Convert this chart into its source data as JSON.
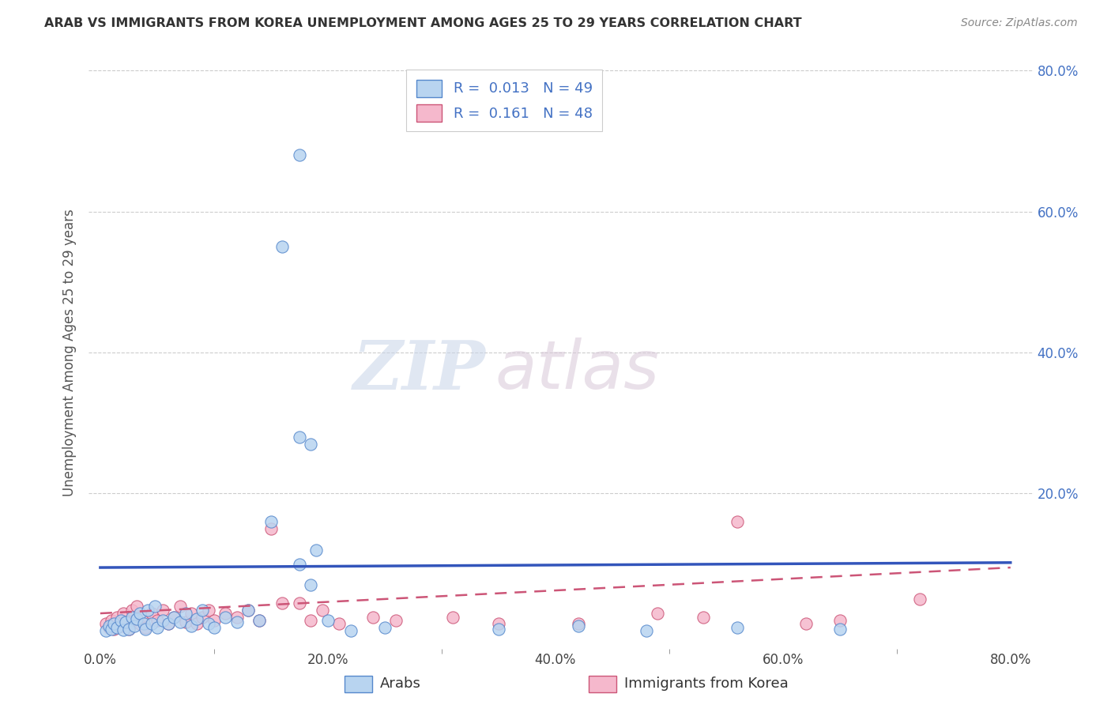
{
  "title": "ARAB VS IMMIGRANTS FROM KOREA UNEMPLOYMENT AMONG AGES 25 TO 29 YEARS CORRELATION CHART",
  "source": "Source: ZipAtlas.com",
  "ylabel": "Unemployment Among Ages 25 to 29 years",
  "xlim": [
    -0.01,
    0.82
  ],
  "ylim": [
    -0.02,
    0.82
  ],
  "xticks": [
    0.0,
    0.2,
    0.4,
    0.6,
    0.8
  ],
  "yticks": [
    0.2,
    0.4,
    0.6,
    0.8
  ],
  "xticklabels": [
    "0.0%",
    "20.0%",
    "40.0%",
    "60.0%",
    "80.0%"
  ],
  "yticklabels": [
    "20.0%",
    "40.0%",
    "60.0%",
    "80.0%"
  ],
  "arab_color": "#b8d4f0",
  "arab_edge_color": "#5588cc",
  "korea_color": "#f5b8cc",
  "korea_edge_color": "#cc5577",
  "trend_arab_color": "#3355bb",
  "trend_korea_color": "#cc5577",
  "R_arab": 0.013,
  "N_arab": 49,
  "R_korea": 0.161,
  "N_korea": 48,
  "watermark_zip": "ZIP",
  "watermark_atlas": "atlas",
  "arab_x": [
    0.005,
    0.008,
    0.01,
    0.012,
    0.015,
    0.018,
    0.02,
    0.022,
    0.025,
    0.028,
    0.03,
    0.032,
    0.035,
    0.038,
    0.04,
    0.042,
    0.045,
    0.048,
    0.05,
    0.055,
    0.06,
    0.065,
    0.07,
    0.075,
    0.08,
    0.085,
    0.09,
    0.095,
    0.1,
    0.11,
    0.12,
    0.13,
    0.14,
    0.15,
    0.16,
    0.175,
    0.185,
    0.2,
    0.22,
    0.25,
    0.35,
    0.42,
    0.48,
    0.56,
    0.65,
    0.175,
    0.19,
    0.175,
    0.185
  ],
  "arab_y": [
    0.005,
    0.012,
    0.008,
    0.015,
    0.01,
    0.02,
    0.006,
    0.018,
    0.008,
    0.025,
    0.012,
    0.022,
    0.03,
    0.015,
    0.008,
    0.035,
    0.015,
    0.04,
    0.01,
    0.02,
    0.015,
    0.025,
    0.018,
    0.03,
    0.012,
    0.022,
    0.035,
    0.015,
    0.01,
    0.025,
    0.018,
    0.035,
    0.02,
    0.16,
    0.55,
    0.28,
    0.27,
    0.02,
    0.005,
    0.01,
    0.008,
    0.012,
    0.005,
    0.01,
    0.008,
    0.1,
    0.12,
    0.68,
    0.07
  ],
  "korea_x": [
    0.005,
    0.008,
    0.01,
    0.012,
    0.015,
    0.018,
    0.02,
    0.022,
    0.025,
    0.028,
    0.03,
    0.032,
    0.035,
    0.038,
    0.04,
    0.045,
    0.05,
    0.055,
    0.06,
    0.065,
    0.07,
    0.075,
    0.08,
    0.085,
    0.09,
    0.095,
    0.1,
    0.11,
    0.12,
    0.13,
    0.14,
    0.15,
    0.16,
    0.175,
    0.185,
    0.195,
    0.21,
    0.24,
    0.26,
    0.31,
    0.35,
    0.42,
    0.49,
    0.53,
    0.56,
    0.62,
    0.65,
    0.72
  ],
  "korea_y": [
    0.015,
    0.01,
    0.02,
    0.008,
    0.025,
    0.012,
    0.03,
    0.018,
    0.008,
    0.035,
    0.02,
    0.04,
    0.015,
    0.025,
    0.01,
    0.03,
    0.02,
    0.035,
    0.015,
    0.025,
    0.04,
    0.018,
    0.03,
    0.015,
    0.025,
    0.035,
    0.02,
    0.03,
    0.025,
    0.035,
    0.02,
    0.15,
    0.045,
    0.045,
    0.02,
    0.035,
    0.015,
    0.025,
    0.02,
    0.025,
    0.015,
    0.015,
    0.03,
    0.025,
    0.16,
    0.015,
    0.02,
    0.05
  ],
  "arab_trend_y_start": 0.095,
  "arab_trend_y_end": 0.102,
  "korea_trend_y_start": 0.03,
  "korea_trend_y_end": 0.095
}
